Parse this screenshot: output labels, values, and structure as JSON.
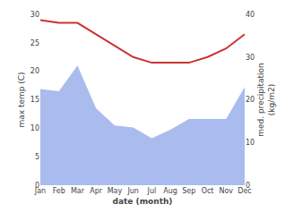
{
  "chart_data": {
    "type": "line",
    "xlabel": "date (month)",
    "ylabel": "max temp (C)",
    "y2label": "med. precipitation\n(kg/m2)",
    "categories": [
      "Jan",
      "Feb",
      "Mar",
      "Apr",
      "May",
      "Jun",
      "Jul",
      "Aug",
      "Sep",
      "Oct",
      "Nov",
      "Dec"
    ],
    "series": [
      {
        "type": "area",
        "axis": "y2",
        "color": "#aabbee",
        "values": [
          22.5,
          22.0,
          28.0,
          18.0,
          14.0,
          13.5,
          11.0,
          13.0,
          15.5,
          15.5,
          15.5,
          23.0
        ]
      },
      {
        "type": "line",
        "color": "#cc3333",
        "values": [
          29.0,
          28.5,
          28.5,
          26.5,
          24.5,
          22.5,
          21.5,
          21.5,
          21.5,
          22.5,
          24.0,
          26.5
        ]
      }
    ],
    "ylim": [
      0,
      30
    ],
    "yticks": [
      0,
      5,
      10,
      15,
      20,
      25,
      30
    ],
    "y2lim": [
      0,
      40
    ],
    "y2ticks": [
      0,
      10,
      20,
      30,
      40
    ],
    "grid": false
  }
}
